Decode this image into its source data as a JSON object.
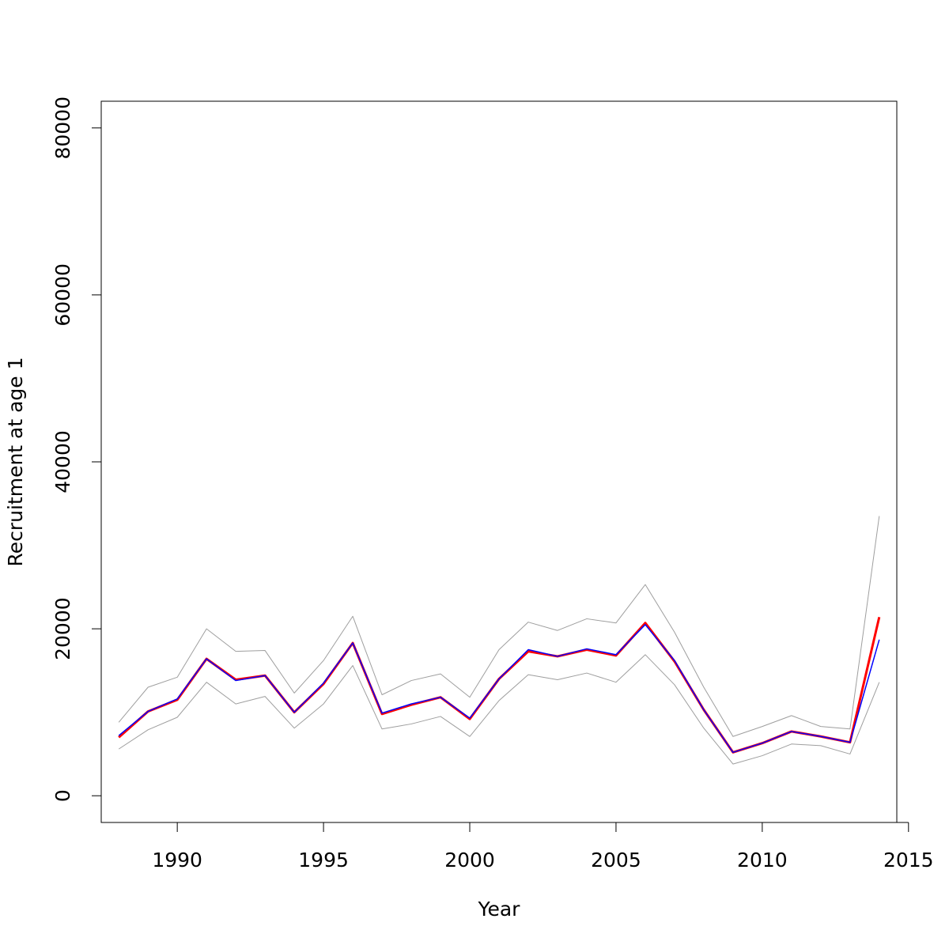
{
  "chart_data": {
    "type": "line",
    "title": "",
    "xlabel": "Year",
    "ylabel": "Recruitment at age 1",
    "xlim": [
      1987.4,
      2014.6
    ],
    "ylim": [
      -3200,
      83200
    ],
    "xticks": [
      1990,
      1995,
      2000,
      2005,
      2010,
      2015
    ],
    "yticks": [
      0,
      20000,
      40000,
      60000,
      80000
    ],
    "xtick_labels": [
      "1990",
      "1995",
      "2000",
      "2005",
      "2010",
      "2015"
    ],
    "ytick_labels": [
      "0",
      "20000",
      "40000",
      "60000",
      "80000"
    ],
    "grid": false,
    "legend": "none",
    "x": [
      1988,
      1989,
      1990,
      1991,
      1992,
      1993,
      1994,
      1995,
      1996,
      1997,
      1998,
      1999,
      2000,
      2001,
      2002,
      2003,
      2004,
      2005,
      2006,
      2007,
      2008,
      2009,
      2010,
      2011,
      2012,
      2013,
      2014
    ],
    "series": [
      {
        "color": "#9e9e9e",
        "line_width": 1,
        "values": [
          8800,
          13000,
          14200,
          20000,
          17300,
          17400,
          12300,
          16200,
          21500,
          12100,
          13800,
          14600,
          11800,
          17500,
          20800,
          19800,
          21200,
          20700,
          25300,
          19600,
          13000,
          7100,
          8300,
          9600,
          8300,
          8000,
          33500
        ]
      },
      {
        "color": "#9e9e9e",
        "line_width": 1,
        "values": [
          5600,
          7900,
          9400,
          13600,
          11000,
          11900,
          8100,
          11000,
          15600,
          8000,
          8600,
          9500,
          7100,
          11400,
          14500,
          13900,
          14700,
          13600,
          16900,
          13300,
          8100,
          3800,
          4800,
          6200,
          6000,
          5000,
          13600
        ]
      },
      {
        "color": "#ff0000",
        "line_width": 3,
        "values": [
          7000,
          10100,
          11500,
          16400,
          13900,
          14400,
          10000,
          13400,
          18300,
          9800,
          10900,
          11800,
          9200,
          14000,
          17300,
          16700,
          17500,
          16800,
          20700,
          16100,
          10300,
          5200,
          6300,
          7700,
          7100,
          6400,
          21400
        ]
      },
      {
        "color": "#0000ff",
        "line_width": 1.5,
        "values": [
          7200,
          10100,
          11600,
          16400,
          13800,
          14400,
          10000,
          13500,
          18300,
          9900,
          11000,
          11800,
          9300,
          14000,
          17500,
          16700,
          17600,
          16900,
          20500,
          16200,
          10300,
          5200,
          6300,
          7700,
          7100,
          6400,
          18700
        ]
      }
    ]
  }
}
